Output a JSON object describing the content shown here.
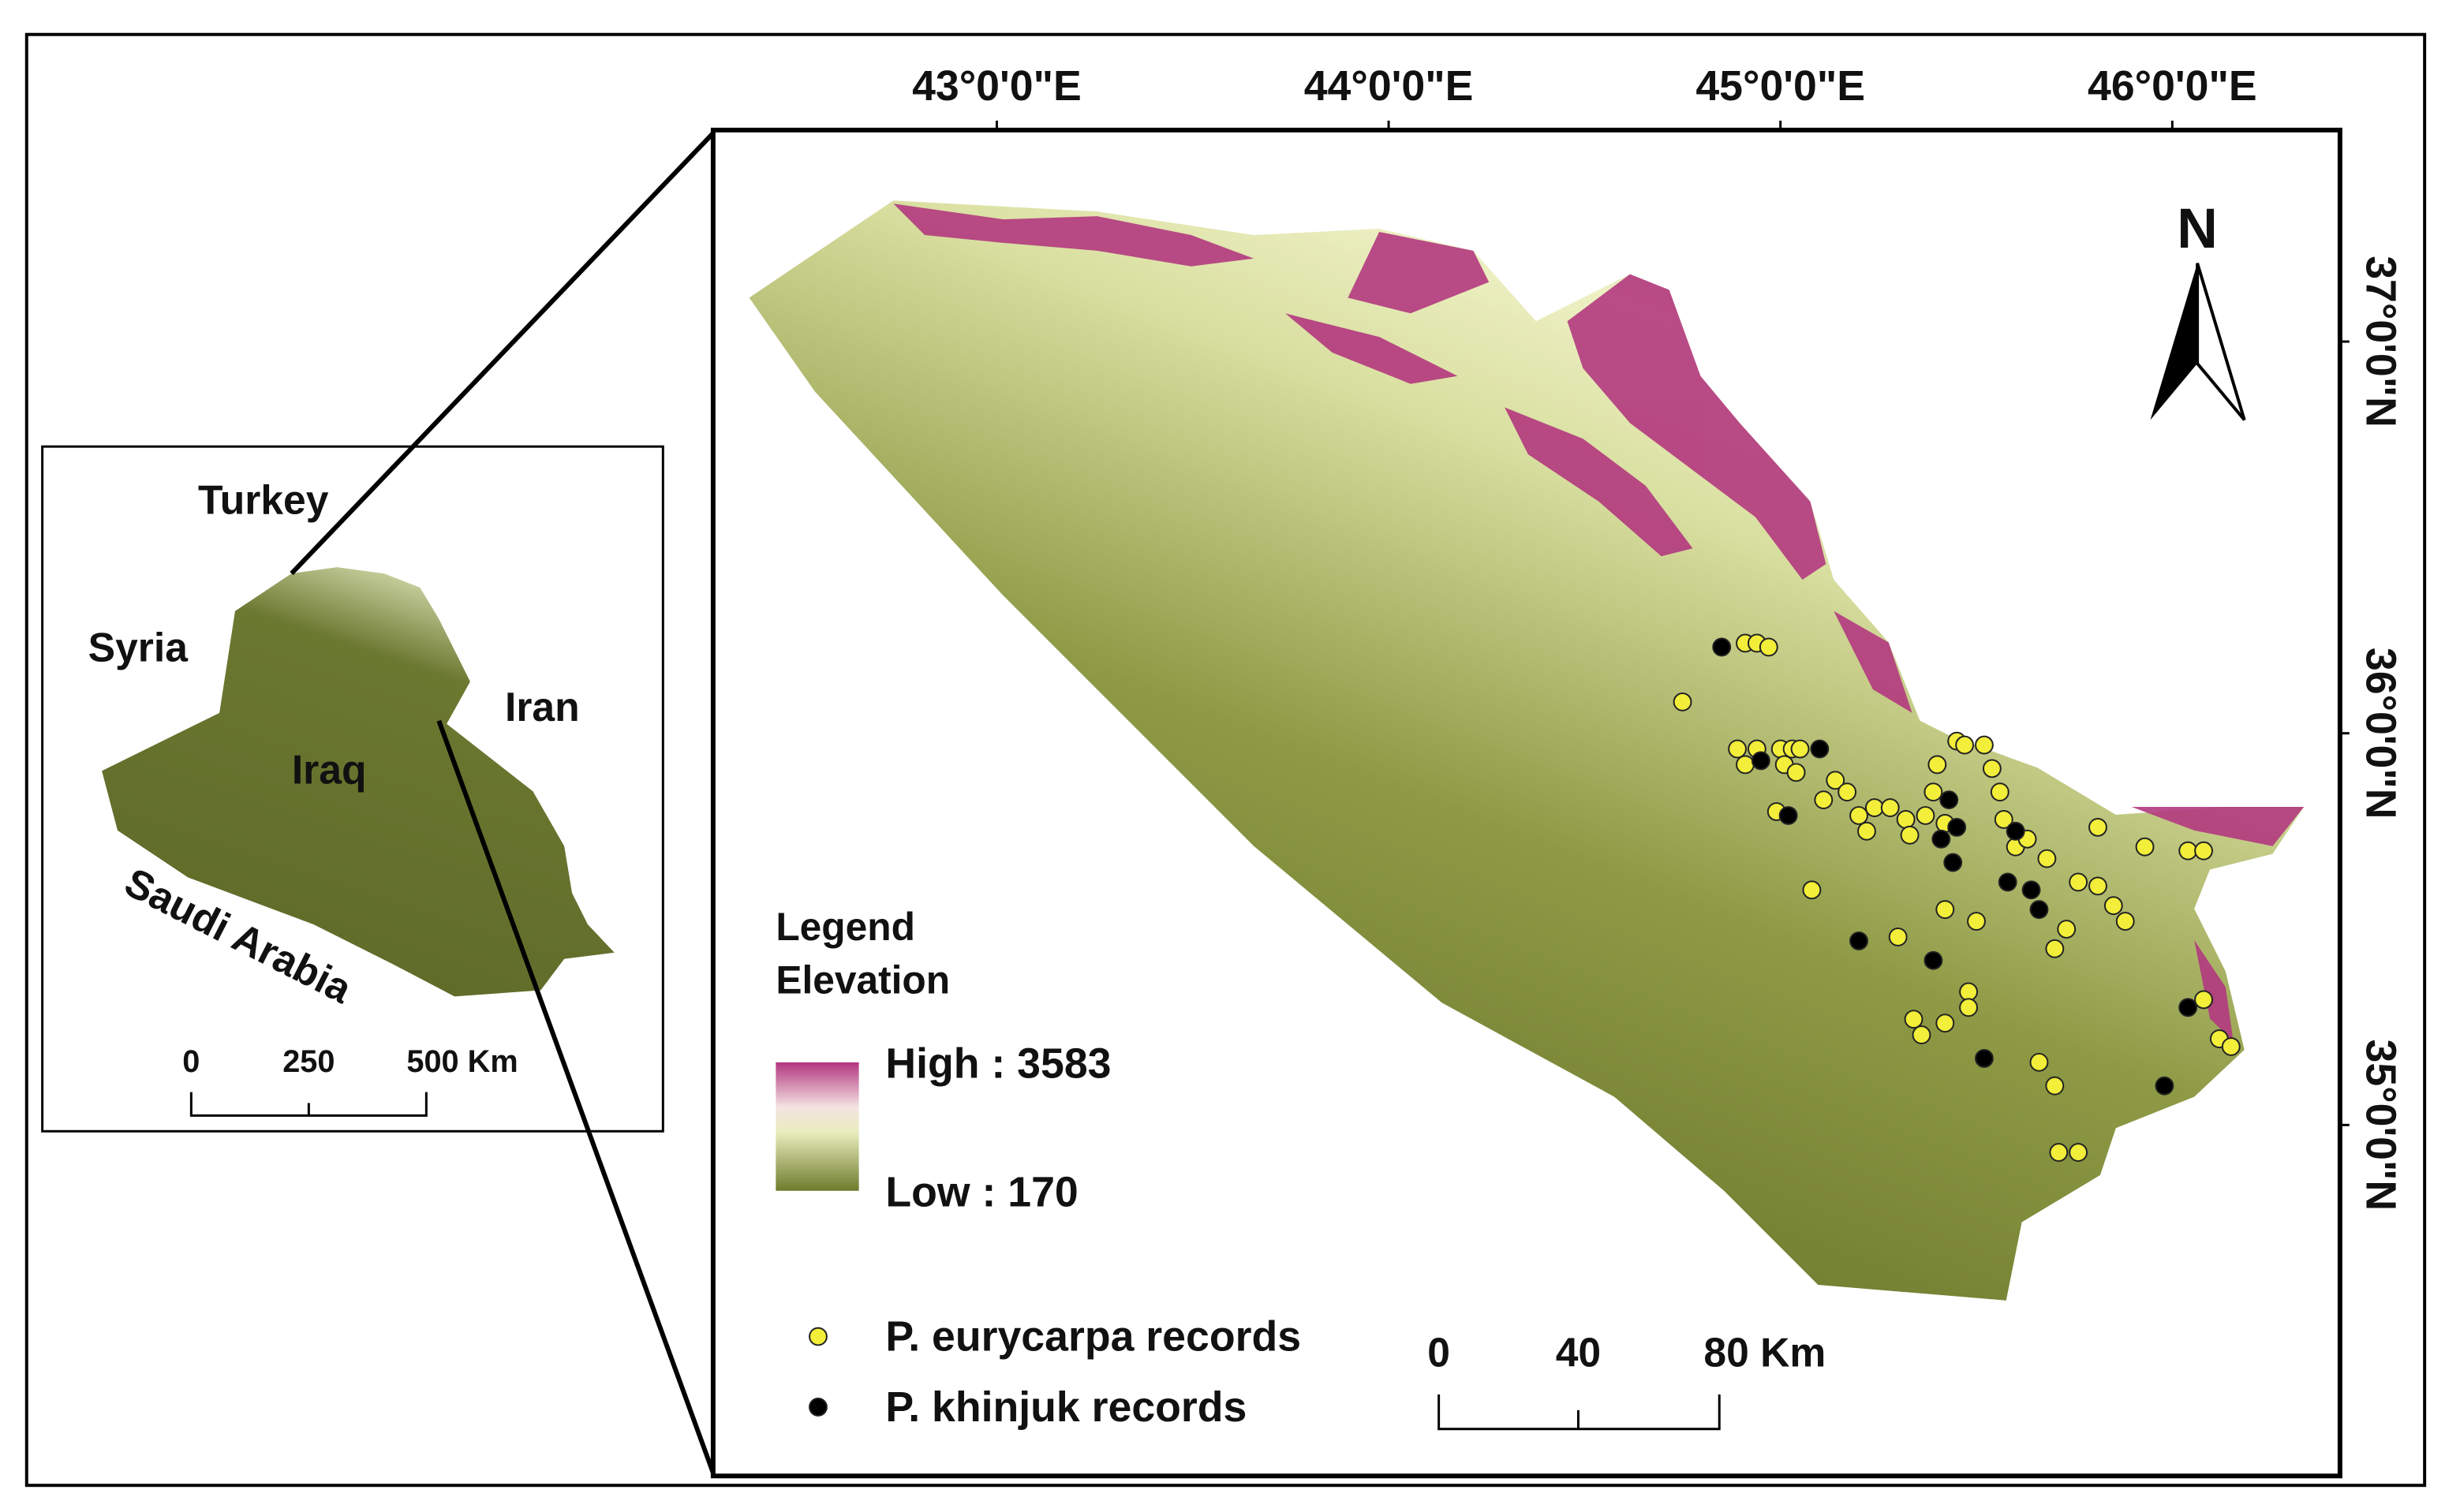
{
  "inset": {
    "countries": [
      "Turkey",
      "Syria",
      "Iran",
      "Iraq",
      "Saudi Arabia"
    ],
    "scale": [
      "0",
      "250",
      "500 Km"
    ]
  },
  "map": {
    "lon_ticks": [
      {
        "value": 43,
        "label": "43°0'0\"E"
      },
      {
        "value": 44,
        "label": "44°0'0\"E"
      },
      {
        "value": 45,
        "label": "45°0'0\"E"
      },
      {
        "value": 46,
        "label": "46°0'0\"E"
      }
    ],
    "lat_ticks": [
      {
        "value": 37,
        "label": "37°0'0\"N"
      },
      {
        "value": 36,
        "label": "36°0'0\"N"
      },
      {
        "value": 35,
        "label": "35°0'0\"N"
      }
    ],
    "north": "N",
    "legend": {
      "title": "Legend",
      "subtitle": "Elevation",
      "high": "High : 3583",
      "low": "Low : 170"
    },
    "scale": [
      "0",
      "40",
      "80 Km"
    ],
    "records": [
      {
        "name": "P. eurycarpa records",
        "color": "#f2ee3a",
        "points": [
          [
            44.75,
            36.08
          ],
          [
            44.91,
            36.23
          ],
          [
            44.94,
            36.23
          ],
          [
            44.97,
            36.22
          ],
          [
            44.89,
            35.96
          ],
          [
            44.91,
            35.92
          ],
          [
            44.94,
            35.96
          ],
          [
            45.0,
            35.96
          ],
          [
            45.03,
            35.96
          ],
          [
            45.05,
            35.96
          ],
          [
            45.01,
            35.92
          ],
          [
            45.04,
            35.9
          ],
          [
            44.99,
            35.8
          ],
          [
            45.08,
            35.6
          ],
          [
            45.11,
            35.83
          ],
          [
            45.14,
            35.88
          ],
          [
            45.17,
            35.85
          ],
          [
            45.2,
            35.79
          ],
          [
            45.22,
            35.75
          ],
          [
            45.24,
            35.81
          ],
          [
            45.28,
            35.81
          ],
          [
            45.32,
            35.78
          ],
          [
            45.33,
            35.74
          ],
          [
            45.37,
            35.79
          ],
          [
            45.39,
            35.85
          ],
          [
            45.4,
            35.92
          ],
          [
            45.42,
            35.77
          ],
          [
            45.45,
            35.98
          ],
          [
            45.47,
            35.97
          ],
          [
            45.52,
            35.97
          ],
          [
            45.54,
            35.91
          ],
          [
            45.56,
            35.85
          ],
          [
            45.57,
            35.78
          ],
          [
            45.6,
            35.71
          ],
          [
            45.63,
            35.73
          ],
          [
            45.68,
            35.68
          ],
          [
            45.81,
            35.76
          ],
          [
            45.93,
            35.71
          ],
          [
            46.04,
            35.7
          ],
          [
            46.08,
            35.7
          ],
          [
            45.76,
            35.62
          ],
          [
            45.81,
            35.61
          ],
          [
            45.85,
            35.56
          ],
          [
            45.88,
            35.52
          ],
          [
            45.73,
            35.5
          ],
          [
            45.7,
            35.45
          ],
          [
            45.42,
            35.55
          ],
          [
            45.5,
            35.52
          ],
          [
            45.3,
            35.48
          ],
          [
            45.48,
            35.34
          ],
          [
            45.48,
            35.3
          ],
          [
            45.34,
            35.27
          ],
          [
            45.36,
            35.23
          ],
          [
            45.42,
            35.26
          ],
          [
            45.66,
            35.16
          ],
          [
            45.7,
            35.1
          ],
          [
            45.71,
            34.93
          ],
          [
            45.76,
            34.93
          ],
          [
            46.08,
            35.32
          ],
          [
            46.12,
            35.22
          ],
          [
            46.15,
            35.2
          ]
        ]
      },
      {
        "name": "P. khinjuk records",
        "color": "#000000",
        "points": [
          [
            44.85,
            36.22
          ],
          [
            44.95,
            35.93
          ],
          [
            45.02,
            35.79
          ],
          [
            45.1,
            35.96
          ],
          [
            45.43,
            35.83
          ],
          [
            45.41,
            35.73
          ],
          [
            45.45,
            35.76
          ],
          [
            45.6,
            35.75
          ],
          [
            45.58,
            35.62
          ],
          [
            45.64,
            35.6
          ],
          [
            45.66,
            35.55
          ],
          [
            45.44,
            35.67
          ],
          [
            45.39,
            35.42
          ],
          [
            45.2,
            35.47
          ],
          [
            45.52,
            35.17
          ],
          [
            46.04,
            35.3
          ],
          [
            45.98,
            35.1
          ]
        ]
      }
    ]
  }
}
